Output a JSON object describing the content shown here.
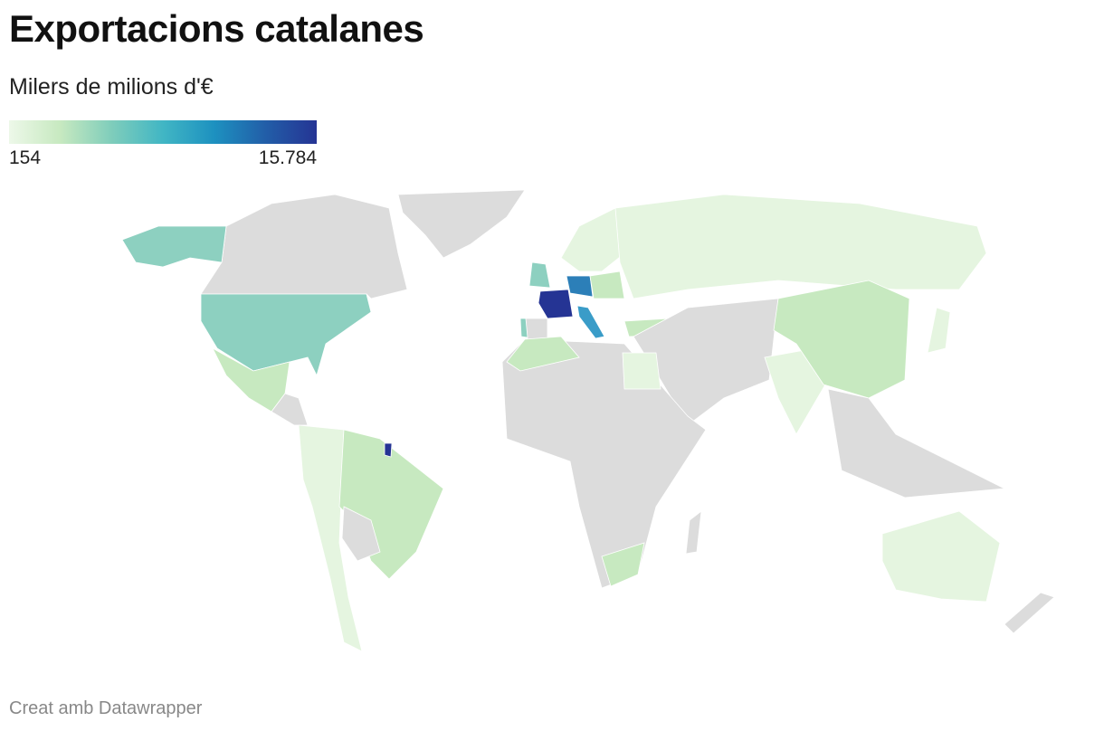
{
  "header": {
    "title": "Exportacions catalanes",
    "subtitle": "Milers de milions d'€"
  },
  "legend": {
    "min": 154,
    "max": {
      "value": 15784,
      "label": "15.784"
    },
    "colors": [
      "#edf8e9",
      "#c7e9c0",
      "#7fcdbb",
      "#41b6c4",
      "#1d91c0",
      "#225ea8",
      "#253494"
    ]
  },
  "footer": {
    "credit": "Creat amb Datawrapper"
  }
}
